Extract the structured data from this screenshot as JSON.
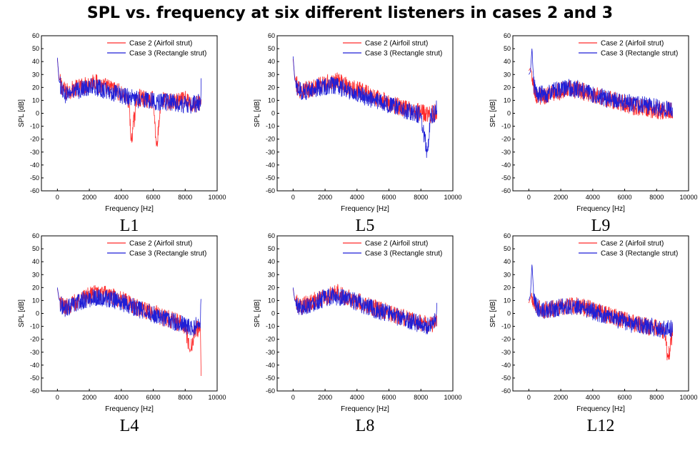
{
  "title": "SPL vs. frequency at six different listeners in cases 2 and 3",
  "colors": {
    "case2": "#ff2a2a",
    "case3": "#1f1fd6"
  },
  "legend": [
    "Case 2 (Airfoil strut)",
    "Case 3 (Rectangle strut)"
  ],
  "chart_data": [
    {
      "type": "line",
      "panel_label": "L1",
      "xlabel": "Frequency [Hz]",
      "ylabel": "SPL [dB]",
      "xlim": [
        -1000,
        10000
      ],
      "ylim": [
        -60,
        60
      ],
      "xticks": [
        0,
        2000,
        4000,
        6000,
        8000,
        10000
      ],
      "yticks": [
        -60,
        -50,
        -40,
        -30,
        -20,
        -10,
        0,
        10,
        20,
        30,
        40,
        50,
        60
      ],
      "series": [
        {
          "name": "Case 2 (Airfoil strut)",
          "color": "#ff2a2a",
          "x": [
            0,
            100,
            300,
            500,
            1000,
            1500,
            2000,
            2300,
            2500,
            3000,
            3500,
            4000,
            4500,
            4600,
            5000,
            5500,
            6000,
            6200,
            6500,
            7000,
            7500,
            8000,
            8500,
            9000
          ],
          "y": [
            42,
            27,
            22,
            18,
            20,
            22,
            24,
            27,
            24,
            22,
            20,
            17,
            10,
            -22,
            14,
            12,
            12,
            -26,
            12,
            10,
            10,
            12,
            8,
            10
          ]
        },
        {
          "name": "Case 3 (Rectangle strut)",
          "color": "#1f1fd6",
          "x": [
            0,
            100,
            300,
            500,
            1000,
            1500,
            2000,
            2500,
            3000,
            3500,
            4000,
            4500,
            5000,
            5500,
            6000,
            6500,
            7000,
            7500,
            8000,
            8500,
            8950,
            9000
          ],
          "y": [
            43,
            25,
            20,
            16,
            18,
            20,
            22,
            21,
            19,
            17,
            15,
            14,
            12,
            12,
            11,
            10,
            10,
            9,
            8,
            8,
            10,
            23
          ]
        }
      ]
    },
    {
      "type": "line",
      "panel_label": "L5",
      "xlabel": "Frequency [Hz]",
      "ylabel": "SPL [dB]",
      "xlim": [
        -1000,
        10000
      ],
      "ylim": [
        -60,
        60
      ],
      "xticks": [
        0,
        2000,
        4000,
        6000,
        8000,
        10000
      ],
      "yticks": [
        -60,
        -50,
        -40,
        -30,
        -20,
        -10,
        0,
        10,
        20,
        30,
        40,
        50,
        60
      ],
      "series": [
        {
          "name": "Case 2 (Airfoil strut)",
          "color": "#ff2a2a",
          "x": [
            0,
            100,
            300,
            500,
            1000,
            1500,
            2000,
            2500,
            3000,
            3500,
            4000,
            4500,
            5000,
            5500,
            6000,
            6500,
            7000,
            7500,
            8000,
            8500,
            9000
          ],
          "y": [
            42,
            28,
            21,
            19,
            20,
            22,
            24,
            27,
            25,
            22,
            20,
            17,
            14,
            12,
            9,
            7,
            5,
            4,
            2,
            0,
            2
          ]
        },
        {
          "name": "Case 3 (Rectangle strut)",
          "color": "#1f1fd6",
          "x": [
            0,
            100,
            300,
            500,
            1000,
            1500,
            2000,
            2500,
            3000,
            3500,
            4000,
            4500,
            5000,
            5500,
            6000,
            6500,
            7000,
            7500,
            8000,
            8400,
            8600,
            8950,
            9000
          ],
          "y": [
            44,
            26,
            20,
            18,
            19,
            21,
            22,
            23,
            21,
            19,
            17,
            14,
            12,
            10,
            8,
            6,
            4,
            2,
            0,
            -30,
            0,
            2,
            10
          ]
        }
      ]
    },
    {
      "type": "line",
      "panel_label": "L9",
      "xlabel": "Frequency [Hz]",
      "ylabel": "SPL [dB]",
      "xlim": [
        -1000,
        10000
      ],
      "ylim": [
        -60,
        60
      ],
      "xticks": [
        0,
        2000,
        4000,
        6000,
        8000,
        10000
      ],
      "yticks": [
        -60,
        -50,
        -40,
        -30,
        -20,
        -10,
        0,
        10,
        20,
        30,
        40,
        50,
        60
      ],
      "series": [
        {
          "name": "Case 2 (Airfoil strut)",
          "color": "#ff2a2a",
          "x": [
            0,
            100,
            200,
            300,
            500,
            1000,
            1500,
            2000,
            2500,
            3000,
            3500,
            4000,
            4500,
            5000,
            5500,
            6000,
            6500,
            7000,
            7500,
            8000,
            8500,
            9000
          ],
          "y": [
            33,
            35,
            30,
            22,
            15,
            15,
            17,
            19,
            20,
            19,
            18,
            16,
            14,
            12,
            11,
            9,
            7,
            6,
            5,
            4,
            3,
            4
          ]
        },
        {
          "name": "Case 3 (Rectangle strut)",
          "color": "#1f1fd6",
          "x": [
            0,
            100,
            200,
            250,
            300,
            500,
            1000,
            1500,
            2000,
            2500,
            3000,
            3500,
            4000,
            4500,
            5000,
            5500,
            6000,
            6500,
            7000,
            7500,
            8000,
            8500,
            9000
          ],
          "y": [
            30,
            32,
            51,
            35,
            25,
            16,
            16,
            18,
            20,
            21,
            20,
            18,
            16,
            14,
            12,
            11,
            10,
            9,
            8,
            7,
            6,
            5,
            5
          ]
        }
      ]
    },
    {
      "type": "line",
      "panel_label": "L4",
      "xlabel": "Frequency [Hz]",
      "ylabel": "SPL [dB]",
      "xlim": [
        -1000,
        10000
      ],
      "ylim": [
        -60,
        60
      ],
      "xticks": [
        0,
        2000,
        4000,
        6000,
        8000,
        10000
      ],
      "yticks": [
        -60,
        -50,
        -40,
        -30,
        -20,
        -10,
        0,
        10,
        20,
        30,
        40,
        50,
        60
      ],
      "series": [
        {
          "name": "Case 2 (Airfoil strut)",
          "color": "#ff2a2a",
          "x": [
            0,
            100,
            300,
            500,
            1000,
            1500,
            2000,
            2500,
            3000,
            3500,
            4000,
            4500,
            5000,
            5500,
            6000,
            6500,
            7000,
            7500,
            8000,
            8300,
            8600,
            8950,
            9000
          ],
          "y": [
            19,
            12,
            8,
            6,
            9,
            13,
            15,
            17,
            16,
            14,
            12,
            9,
            6,
            4,
            2,
            -1,
            -3,
            -5,
            -8,
            -30,
            -10,
            -10,
            -51
          ]
        },
        {
          "name": "Case 3 (Rectangle strut)",
          "color": "#1f1fd6",
          "x": [
            0,
            100,
            300,
            500,
            1000,
            1500,
            2000,
            2500,
            3000,
            3500,
            4000,
            4500,
            5000,
            5500,
            6000,
            6500,
            7000,
            7500,
            8000,
            8500,
            8950,
            9000
          ],
          "y": [
            20,
            11,
            7,
            5,
            8,
            11,
            13,
            14,
            13,
            12,
            10,
            8,
            5,
            3,
            1,
            -2,
            -4,
            -6,
            -8,
            -10,
            -5,
            11
          ]
        }
      ]
    },
    {
      "type": "line",
      "panel_label": "L8",
      "xlabel": "Frequency [Hz]",
      "ylabel": "SPL [dB]",
      "xlim": [
        -1000,
        10000
      ],
      "ylim": [
        -60,
        60
      ],
      "xticks": [
        0,
        2000,
        4000,
        6000,
        8000,
        10000
      ],
      "yticks": [
        -60,
        -50,
        -40,
        -30,
        -20,
        -10,
        0,
        10,
        20,
        30,
        40,
        50,
        60
      ],
      "series": [
        {
          "name": "Case 2 (Airfoil strut)",
          "color": "#ff2a2a",
          "x": [
            0,
            100,
            300,
            500,
            1000,
            1500,
            2000,
            2500,
            2700,
            3000,
            3500,
            4000,
            4500,
            5000,
            5500,
            6000,
            6500,
            7000,
            7500,
            8000,
            8500,
            9000
          ],
          "y": [
            19,
            11,
            8,
            7,
            9,
            12,
            14,
            16,
            18,
            15,
            13,
            11,
            8,
            6,
            4,
            2,
            0,
            -2,
            -4,
            -6,
            -8,
            -4
          ]
        },
        {
          "name": "Case 3 (Rectangle strut)",
          "color": "#1f1fd6",
          "x": [
            0,
            100,
            300,
            500,
            1000,
            1500,
            2000,
            2500,
            3000,
            3500,
            4000,
            4500,
            5000,
            5500,
            6000,
            6500,
            7000,
            7500,
            8000,
            8500,
            8950,
            9000
          ],
          "y": [
            20,
            10,
            7,
            6,
            8,
            11,
            13,
            15,
            14,
            12,
            10,
            7,
            5,
            3,
            1,
            -1,
            -3,
            -5,
            -7,
            -9,
            -2,
            14
          ]
        }
      ]
    },
    {
      "type": "line",
      "panel_label": "L12",
      "xlabel": "Frequency [Hz]",
      "ylabel": "SPL [dB]",
      "xlim": [
        -1000,
        10000
      ],
      "ylim": [
        -60,
        60
      ],
      "xticks": [
        0,
        2000,
        4000,
        6000,
        8000,
        10000
      ],
      "yticks": [
        -60,
        -50,
        -40,
        -30,
        -20,
        -10,
        0,
        10,
        20,
        30,
        40,
        50,
        60
      ],
      "series": [
        {
          "name": "Case 2 (Airfoil strut)",
          "color": "#ff2a2a",
          "x": [
            0,
            100,
            200,
            300,
            500,
            1000,
            1500,
            2000,
            2500,
            3000,
            3500,
            4000,
            4500,
            5000,
            5500,
            6000,
            6500,
            7000,
            7500,
            8000,
            8500,
            8700,
            9000
          ],
          "y": [
            8,
            12,
            14,
            10,
            6,
            4,
            5,
            6,
            7,
            7,
            6,
            4,
            2,
            0,
            -2,
            -4,
            -6,
            -8,
            -9,
            -10,
            -12,
            -34,
            -12
          ]
        },
        {
          "name": "Case 3 (Rectangle strut)",
          "color": "#1f1fd6",
          "x": [
            0,
            100,
            200,
            250,
            300,
            500,
            1000,
            1500,
            2000,
            2500,
            3000,
            3500,
            4000,
            4500,
            5000,
            5500,
            6000,
            6500,
            7000,
            7500,
            8000,
            8500,
            9000
          ],
          "y": [
            10,
            14,
            39,
            25,
            12,
            6,
            4,
            5,
            6,
            7,
            7,
            5,
            3,
            1,
            -1,
            -3,
            -5,
            -7,
            -8,
            -9,
            -10,
            -11,
            -10
          ]
        }
      ]
    }
  ]
}
